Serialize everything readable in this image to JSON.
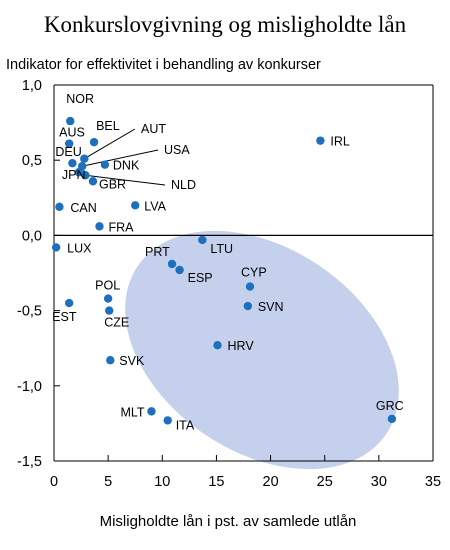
{
  "chart_data": {
    "type": "scatter",
    "title": "Konkurslovgivning og misligholdte lån",
    "ylabel": "Indikator for effektivitet i behandling av konkurser",
    "xlabel": "Misligholdte lån i pst. av samlede utlån",
    "xlim": [
      0,
      35
    ],
    "ylim": [
      -1.5,
      1.0
    ],
    "xticks": [
      "0",
      "5",
      "10",
      "15",
      "20",
      "25",
      "30",
      "35"
    ],
    "yticks": [
      "-1,5",
      "-1,0",
      "-0,5",
      "0,0",
      "0,5",
      "1,0"
    ],
    "grid": false,
    "colors": {
      "point": "#1f6fbf",
      "ellipse": "#c5d1ec",
      "axis": "#000000"
    },
    "points": [
      {
        "label": "NOR",
        "x": 1.5,
        "y": 0.76
      },
      {
        "label": "AUS",
        "x": 1.4,
        "y": 0.61
      },
      {
        "label": "BEL",
        "x": 3.7,
        "y": 0.62
      },
      {
        "label": "AUT",
        "x": 2.8,
        "y": 0.51
      },
      {
        "label": "USA",
        "x": 2.6,
        "y": 0.46
      },
      {
        "label": "DEU",
        "x": 1.7,
        "y": 0.48
      },
      {
        "label": "DNK",
        "x": 4.7,
        "y": 0.47
      },
      {
        "label": "JPN",
        "x": 2.3,
        "y": 0.42
      },
      {
        "label": "NLD",
        "x": 2.9,
        "y": 0.4
      },
      {
        "label": "GBR",
        "x": 3.6,
        "y": 0.36
      },
      {
        "label": "IRL",
        "x": 24.6,
        "y": 0.63
      },
      {
        "label": "CAN",
        "x": 0.5,
        "y": 0.19
      },
      {
        "label": "LVA",
        "x": 7.5,
        "y": 0.2
      },
      {
        "label": "FRA",
        "x": 4.2,
        "y": 0.06
      },
      {
        "label": "LUX",
        "x": 0.2,
        "y": -0.08
      },
      {
        "label": "LTU",
        "x": 13.7,
        "y": -0.03
      },
      {
        "label": "PRT",
        "x": 10.9,
        "y": -0.19
      },
      {
        "label": "ESP",
        "x": 11.6,
        "y": -0.23
      },
      {
        "label": "POL",
        "x": 5.0,
        "y": -0.42
      },
      {
        "label": "CZE",
        "x": 5.1,
        "y": -0.5
      },
      {
        "label": "EST",
        "x": 1.4,
        "y": -0.45
      },
      {
        "label": "CYP",
        "x": 18.1,
        "y": -0.34
      },
      {
        "label": "SVN",
        "x": 17.9,
        "y": -0.47
      },
      {
        "label": "HRV",
        "x": 15.1,
        "y": -0.73
      },
      {
        "label": "SVK",
        "x": 5.2,
        "y": -0.83
      },
      {
        "label": "MLT",
        "x": 9.0,
        "y": -1.17
      },
      {
        "label": "ITA",
        "x": 10.5,
        "y": -1.23
      },
      {
        "label": "GRC",
        "x": 31.2,
        "y": -1.22
      }
    ]
  }
}
